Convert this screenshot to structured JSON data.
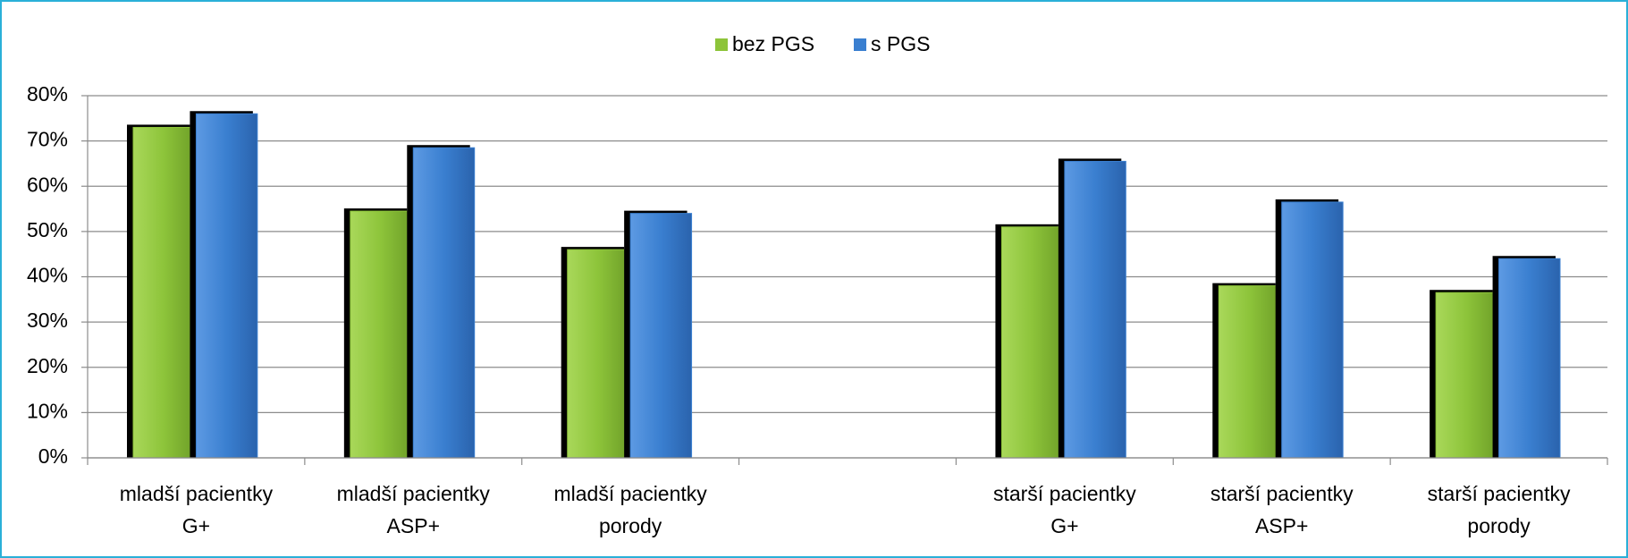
{
  "chart_data": {
    "type": "bar",
    "categories": [
      [
        "mladší pacientky",
        "G+"
      ],
      [
        "mladší pacientky",
        "ASP+"
      ],
      [
        "mladší pacientky",
        "porody"
      ],
      null,
      [
        "starší pacientky",
        "G+"
      ],
      [
        "starší pacientky",
        "ASP+"
      ],
      [
        "starší pacientky",
        "porody"
      ]
    ],
    "series": [
      {
        "name": "bez PGS",
        "color": "#8dc43a",
        "values": [
          73,
          54.5,
          46,
          null,
          51,
          38,
          36.5
        ]
      },
      {
        "name": "s PGS",
        "color": "#3a7fd0",
        "values": [
          76,
          68.5,
          54,
          null,
          65.5,
          56.5,
          44
        ]
      }
    ],
    "ylim": [
      0,
      80
    ],
    "yticks": [
      {
        "value": 0,
        "label": "0%"
      },
      {
        "value": 10,
        "label": "10%"
      },
      {
        "value": 20,
        "label": "20%"
      },
      {
        "value": 30,
        "label": "30%"
      },
      {
        "value": 40,
        "label": "40%"
      },
      {
        "value": 50,
        "label": "50%"
      },
      {
        "value": 60,
        "label": "60%"
      },
      {
        "value": 70,
        "label": "70%"
      },
      {
        "value": 80,
        "label": "80%"
      }
    ],
    "grid": true,
    "legend": "top"
  }
}
